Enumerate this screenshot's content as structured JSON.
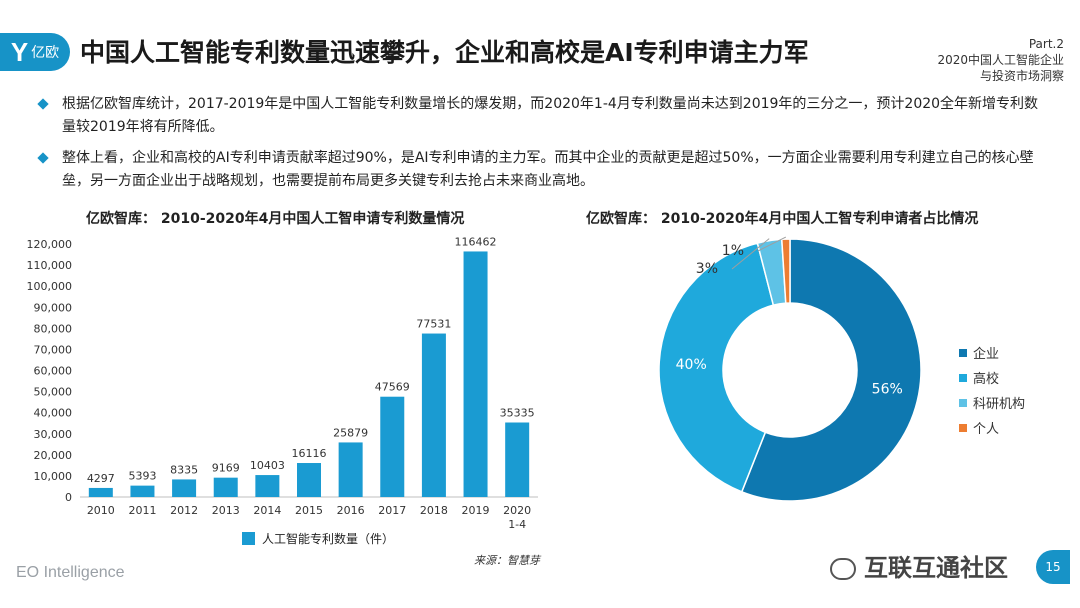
{
  "header": {
    "logo_text": "亿欧",
    "title": "中国人工智能专利数量迅速攀升，企业和高校是AI专利申请主力军",
    "part": "Part.2",
    "part_sub1": "2020中国人工智能企业",
    "part_sub2": "与投资市场洞察"
  },
  "bullets": [
    "根据亿欧智库统计，2017-2019年是中国人工智能专利数量增长的爆发期，而2020年1-4月专利数量尚未达到2019年的三分之一，预计2020全年新增专利数量较2019年将有所降低。",
    "整体上看，企业和高校的AI专利申请贡献率超过90%，是AI专利申请的主力军。而其中企业的贡献更是超过50%，一方面企业需要利用专利建立自己的核心壁垒，另一方面企业出于战略规划，也需要提前布局更多关键专利去抢占未来商业高地。"
  ],
  "chart_data": [
    {
      "type": "bar",
      "title": "亿欧智库： 2010-2020年4月中国人工智申请专利数量情况",
      "categories": [
        "2010",
        "2011",
        "2012",
        "2013",
        "2014",
        "2015",
        "2016",
        "2017",
        "2018",
        "2019",
        "2020\n1-4"
      ],
      "series": [
        {
          "name": "人工智能专利数量（件）",
          "values": [
            4297,
            5393,
            8335,
            9169,
            10403,
            16116,
            25879,
            47569,
            77531,
            116462,
            35335
          ]
        }
      ],
      "yticks": [
        "0",
        "10,000",
        "20,000",
        "30,000",
        "40,000",
        "50,000",
        "60,000",
        "70,000",
        "80,000",
        "90,000",
        "100,000",
        "110,000",
        "120,000"
      ],
      "ylim": [
        0,
        120000
      ],
      "color": "#1a9bd2",
      "legend": "bottom",
      "source": "来源：智慧芽"
    },
    {
      "type": "pie",
      "title": "亿欧智库： 2010-2020年4月中国人工智专利申请者占比情况",
      "slices": [
        {
          "label": "企业",
          "value": 56,
          "text": "56%",
          "color": "#0e78b0"
        },
        {
          "label": "高校",
          "value": 40,
          "text": "40%",
          "color": "#1fa9dc"
        },
        {
          "label": "科研机构",
          "value": 3,
          "text": "3%",
          "color": "#5ec2e6"
        },
        {
          "label": "个人",
          "value": 1,
          "text": "1%",
          "color": "#ed7d31"
        }
      ],
      "legend": "right"
    }
  ],
  "footer": {
    "left": "EO Intelligence",
    "watermark": "互联互通社区",
    "page": "15"
  }
}
